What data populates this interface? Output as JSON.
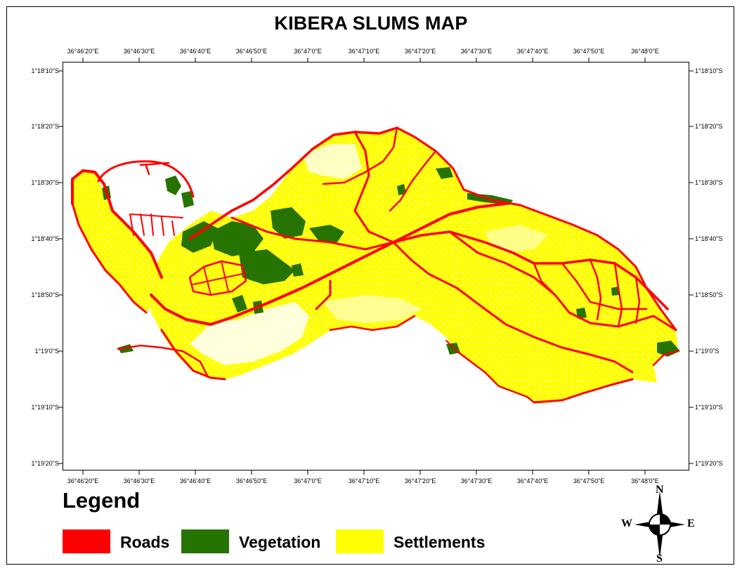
{
  "map": {
    "title": "KIBERA SLUMS MAP",
    "longitude_labels": [
      "36°46'20\"E",
      "36°46'30\"E",
      "36°46'40\"E",
      "36°46'50\"E",
      "36°47'0\"E",
      "36°47'10\"E",
      "36°47'20\"E",
      "36°47'30\"E",
      "36°47'40\"E",
      "36°47'50\"E",
      "36°48'0\"E"
    ],
    "latitude_labels": [
      "1°18'10\"S",
      "1°18'20\"S",
      "1°18'30\"S",
      "1°18'40\"S",
      "1°18'50\"S",
      "1°19'0\"S",
      "1°19'10\"S",
      "1°19'20\"S"
    ],
    "colors": {
      "roads": "#ff0000",
      "vegetation": "#267300",
      "settlements": "#ffff00"
    }
  },
  "legend": {
    "title": "Legend",
    "items": [
      {
        "label": "Roads",
        "color": "#ff0000"
      },
      {
        "label": "Vegetation",
        "color": "#267300"
      },
      {
        "label": "Settlements",
        "color": "#ffff00"
      }
    ]
  },
  "compass": {
    "north": "N",
    "south": "S",
    "east": "E",
    "west": "W"
  }
}
